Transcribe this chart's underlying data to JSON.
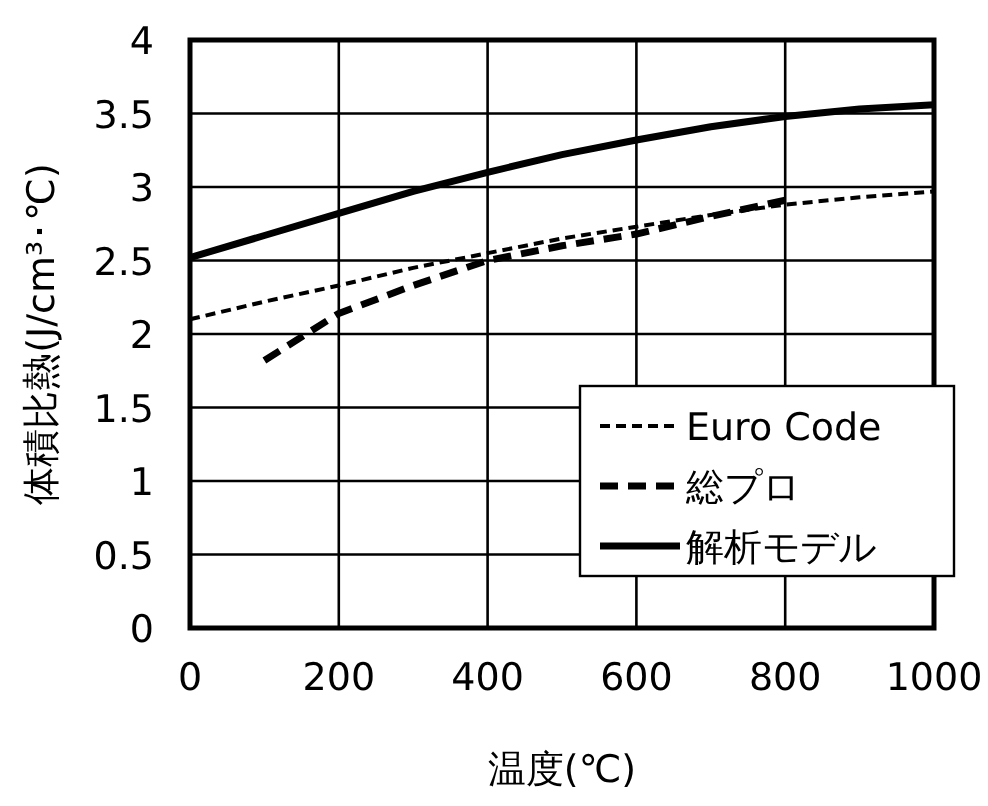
{
  "chart_data": {
    "type": "line",
    "xlabel": "温度(℃)",
    "ylabel": "体積比熱(J/cm³･℃)",
    "xlim": [
      0,
      1000
    ],
    "ylim": [
      0,
      4
    ],
    "xticks": [
      0,
      200,
      400,
      600,
      800,
      1000
    ],
    "yticks": [
      0,
      0.5,
      1,
      1.5,
      2,
      2.5,
      3,
      3.5,
      4
    ],
    "grid": true,
    "legend": "bottom right",
    "series": [
      {
        "name": "Euro Code",
        "color": "#000000",
        "line_style": "dotted",
        "x": [
          0,
          100,
          200,
          300,
          400,
          500,
          600,
          700,
          800,
          900,
          1000
        ],
        "values": [
          2.1,
          2.22,
          2.33,
          2.45,
          2.55,
          2.65,
          2.73,
          2.81,
          2.88,
          2.93,
          2.97
        ]
      },
      {
        "name": "総プロ",
        "color": "#000000",
        "line_style": "dashed",
        "x": [
          100,
          200,
          300,
          400,
          500,
          600,
          700,
          800
        ],
        "values": [
          1.82,
          2.14,
          2.33,
          2.5,
          2.6,
          2.68,
          2.8,
          2.91
        ]
      },
      {
        "name": "解析モデル",
        "color": "#000000",
        "line_style": "solid",
        "x": [
          0,
          100,
          200,
          300,
          400,
          500,
          600,
          700,
          800,
          900,
          1000
        ],
        "values": [
          2.52,
          2.67,
          2.82,
          2.97,
          3.1,
          3.22,
          3.32,
          3.41,
          3.48,
          3.53,
          3.56
        ]
      }
    ]
  }
}
